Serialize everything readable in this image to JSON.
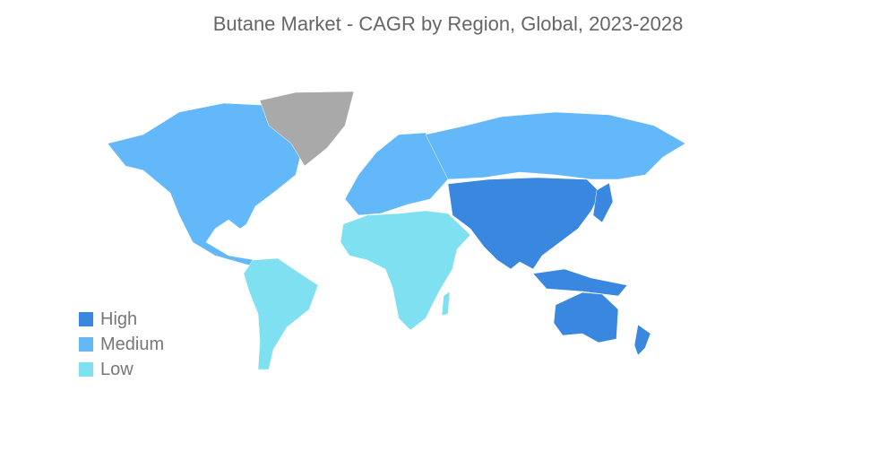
{
  "title": "Butane Market - CAGR by Region, Global, 2023-2028",
  "colors": {
    "high": "#3A87E0",
    "medium": "#62B8F9",
    "low": "#7EE0F0",
    "no_data": "#A9A9A9"
  },
  "legend": [
    {
      "label": "High",
      "color": "#3A87E0"
    },
    {
      "label": "Medium",
      "color": "#62B8F9"
    },
    {
      "label": "Low",
      "color": "#7EE0F0"
    }
  ],
  "regions": [
    {
      "name": "North America",
      "level": "medium"
    },
    {
      "name": "Europe",
      "level": "medium"
    },
    {
      "name": "Russia",
      "level": "medium"
    },
    {
      "name": "Asia-Pacific",
      "level": "high"
    },
    {
      "name": "South America",
      "level": "low"
    },
    {
      "name": "Middle East and Africa",
      "level": "low"
    },
    {
      "name": "Greenland",
      "level": "no_data"
    }
  ]
}
